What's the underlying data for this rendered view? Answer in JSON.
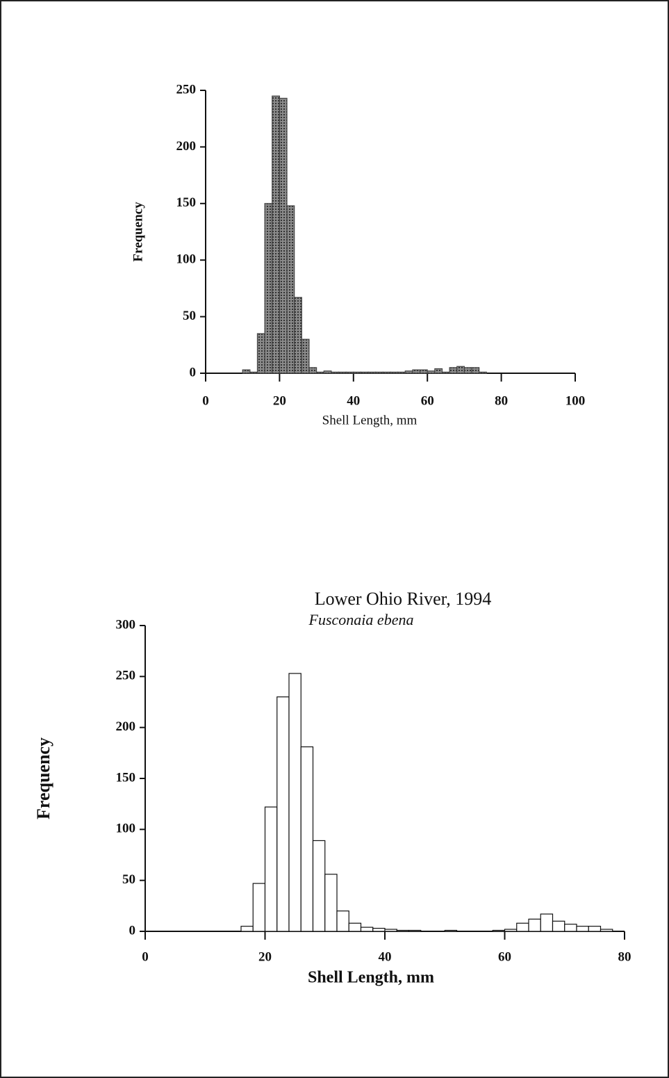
{
  "chart_data": [
    {
      "type": "histogram",
      "bins": [
        10,
        12,
        14,
        16,
        18,
        20,
        22,
        24,
        26,
        28,
        30,
        32,
        34,
        36,
        38,
        40,
        42,
        44,
        46,
        48,
        50,
        52,
        54,
        56,
        58,
        60,
        62,
        64,
        66,
        68,
        70,
        72,
        74,
        76
      ],
      "values": [
        3,
        1,
        35,
        150,
        245,
        243,
        148,
        67,
        30,
        5,
        1,
        2,
        1,
        1,
        1,
        1,
        1,
        1,
        1,
        1,
        1,
        1,
        2,
        3,
        3,
        2,
        4,
        1,
        5,
        6,
        5,
        5,
        1
      ],
      "color": "#6e6e6e",
      "x_label": "Shell Length, mm",
      "y_label": "Frequency",
      "xlim": [
        0,
        100
      ],
      "xticks": [
        0,
        20,
        40,
        60,
        80,
        100
      ],
      "ylim": [
        0,
        250
      ],
      "yticks": [
        0,
        50,
        100,
        150,
        200,
        250
      ]
    },
    {
      "type": "histogram",
      "title": "Lower Ohio River, 1994",
      "subtitle": "Fusconaia ebena",
      "bins": [
        16,
        18,
        20,
        22,
        24,
        26,
        28,
        30,
        32,
        34,
        36,
        38,
        40,
        42,
        44,
        46,
        48,
        50,
        52,
        54,
        56,
        58,
        60,
        62,
        64,
        66,
        68,
        70,
        72,
        74,
        76,
        78
      ],
      "values": [
        5,
        47,
        122,
        230,
        253,
        181,
        89,
        56,
        20,
        8,
        4,
        3,
        2,
        1,
        1,
        0,
        0,
        1,
        0,
        0,
        0,
        1,
        2,
        8,
        12,
        17,
        10,
        7,
        5,
        5,
        2
      ],
      "color": "#ffffff",
      "x_label": "Shell Length, mm",
      "y_label": "Frequency",
      "xlim": [
        0,
        80
      ],
      "xticks": [
        0,
        20,
        40,
        60,
        80
      ],
      "ylim": [
        0,
        300
      ],
      "yticks": [
        0,
        50,
        100,
        150,
        200,
        250,
        300
      ]
    }
  ]
}
